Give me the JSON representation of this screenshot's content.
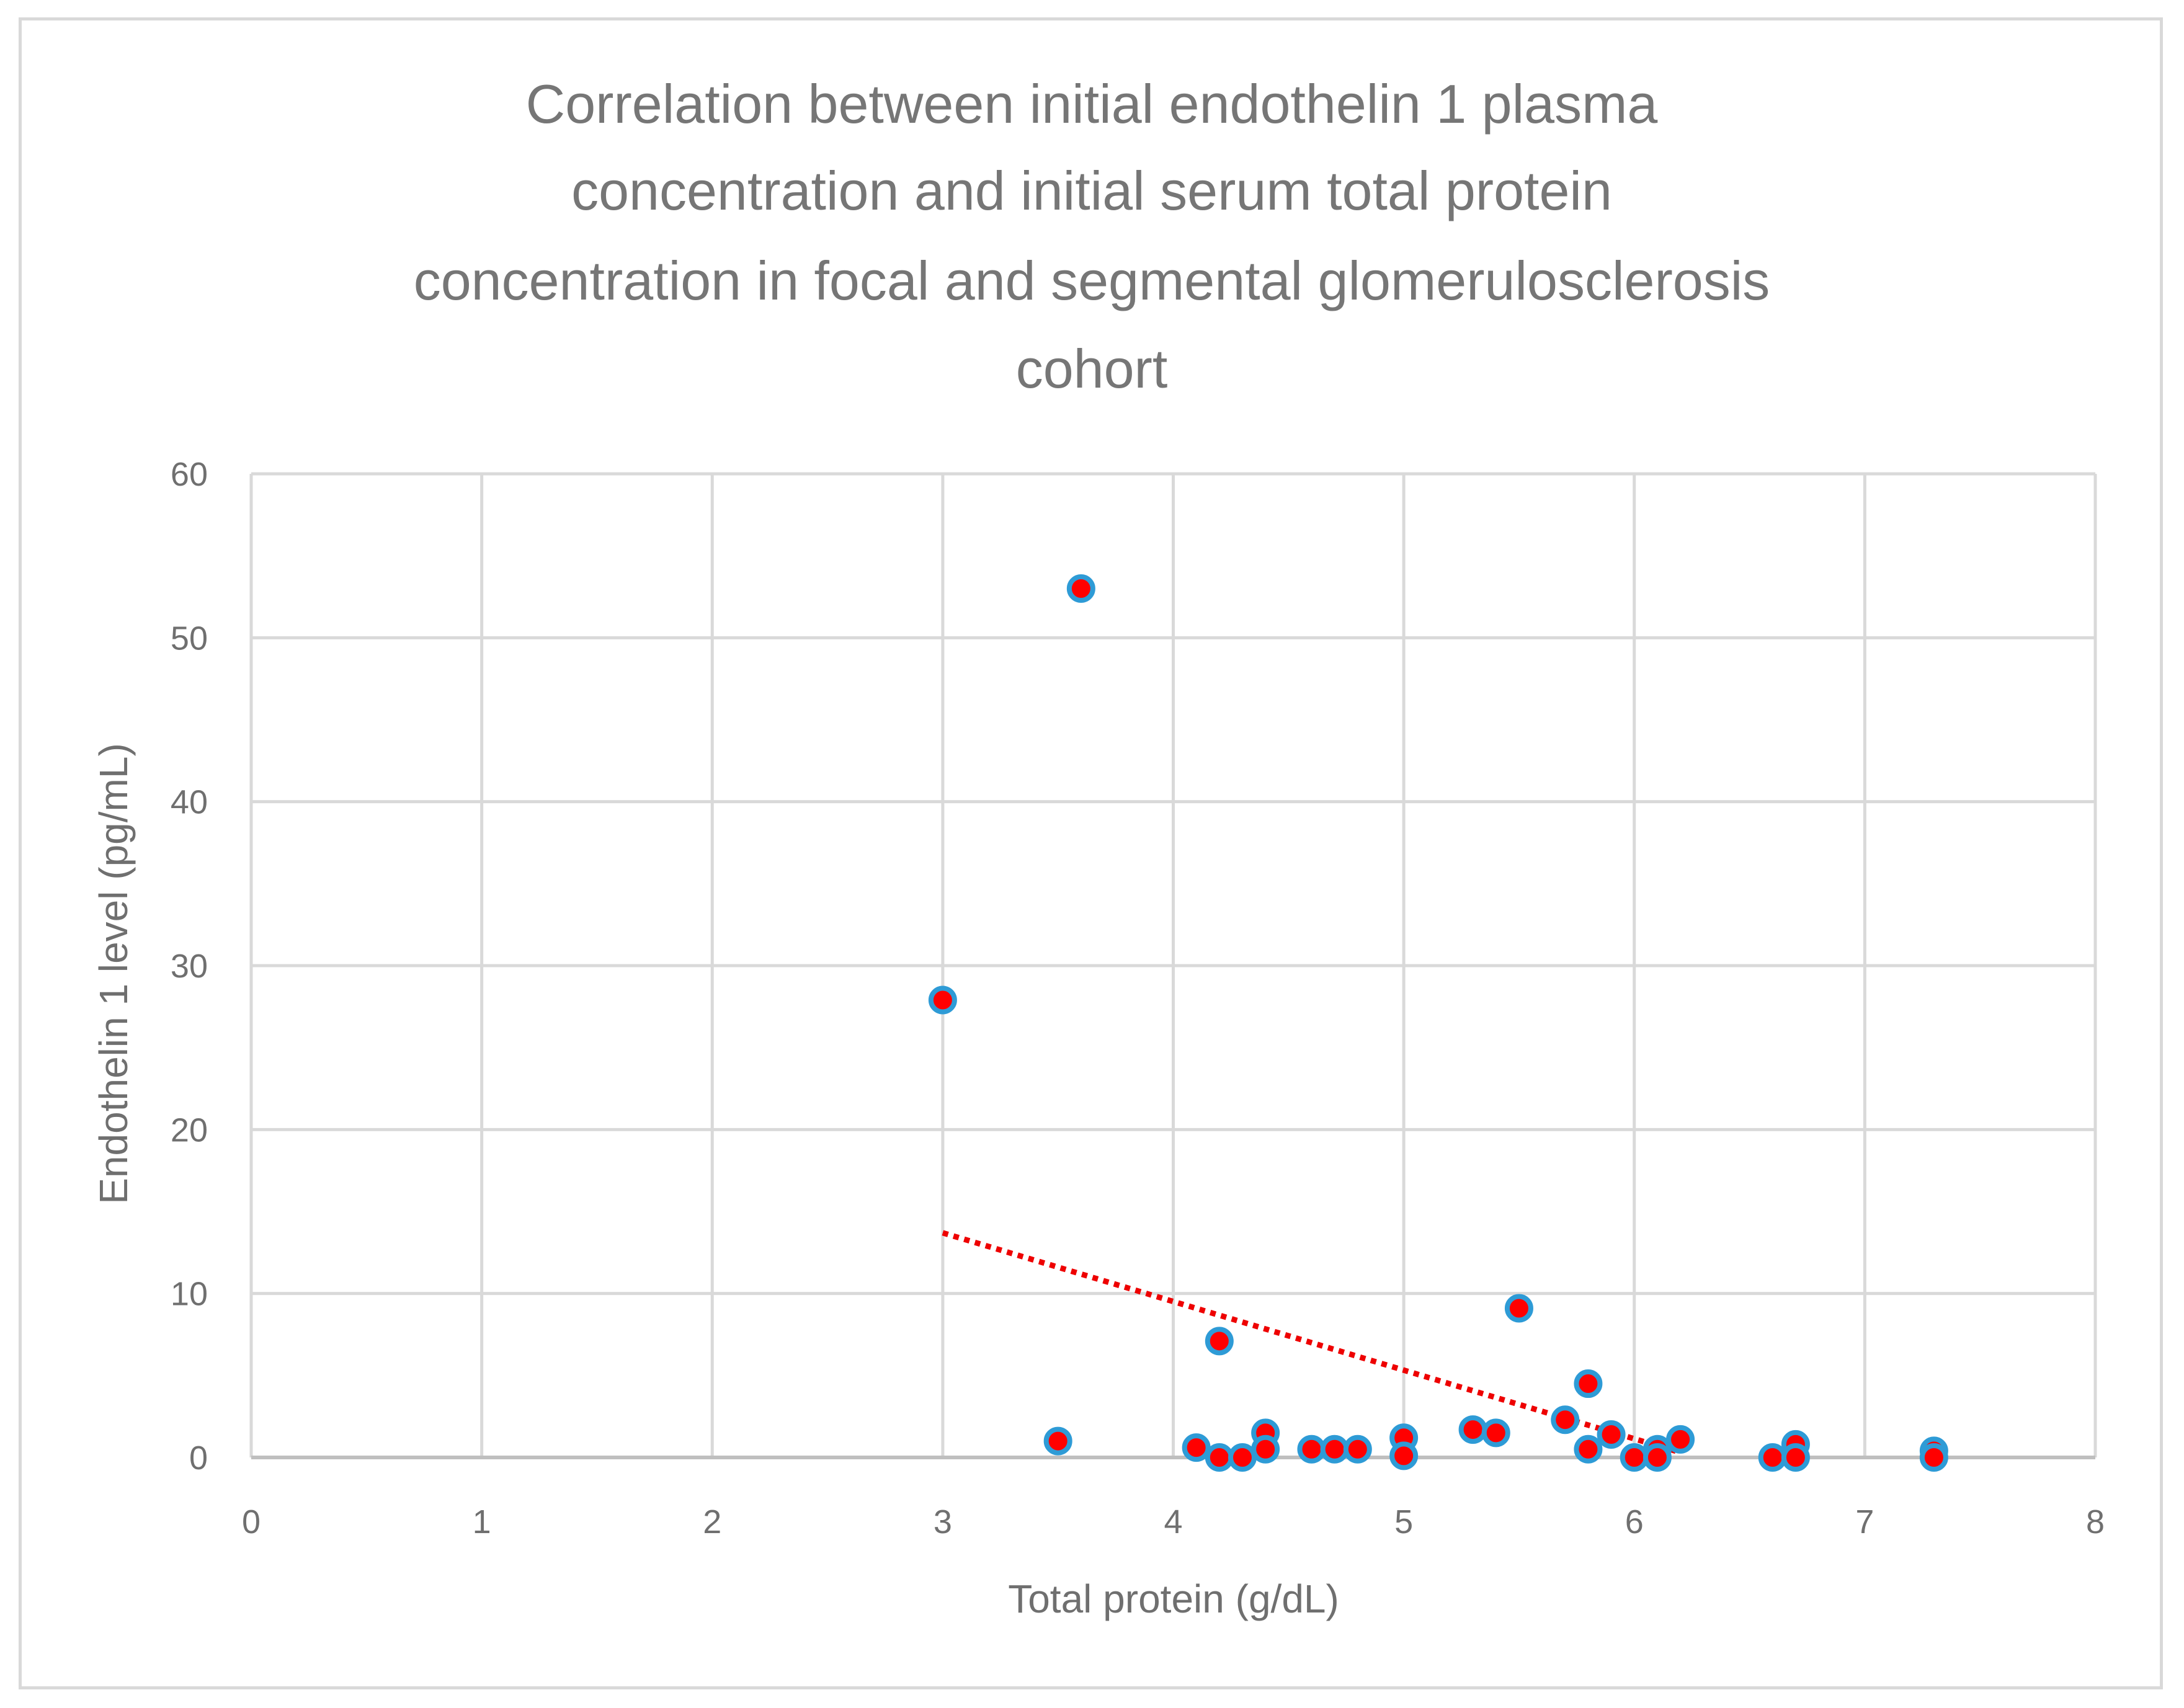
{
  "chart_data": {
    "type": "scatter",
    "title_lines": [
      "Correlation between initial endothelin 1 plasma",
      "concentration and initial serum total protein",
      "concentration in focal and segmental glomerulosclerosis",
      "cohort"
    ],
    "xlabel": "Total protein (g/dL)",
    "ylabel": "Endothelin 1 level (pg/mL)",
    "xlim": [
      0,
      8
    ],
    "ylim": [
      0,
      60
    ],
    "x_ticks": [
      0,
      1,
      2,
      3,
      4,
      5,
      6,
      7,
      8
    ],
    "y_ticks": [
      0,
      10,
      20,
      30,
      40,
      50,
      60
    ],
    "grid": true,
    "legend": "none",
    "marker": {
      "fill": "#ff0000",
      "stroke": "#2e9bd6"
    },
    "trendline": {
      "style": "dotted",
      "color": "#ee0000",
      "from": [
        3.0,
        13.7
      ],
      "to": [
        6.2,
        0.3
      ]
    },
    "series": [
      {
        "points": [
          [
            3.6,
            53.0
          ],
          [
            3.0,
            27.9
          ],
          [
            3.5,
            1.0
          ],
          [
            4.1,
            0.6
          ],
          [
            4.2,
            7.1
          ],
          [
            4.2,
            0.0
          ],
          [
            4.3,
            0.0
          ],
          [
            4.4,
            1.5
          ],
          [
            4.4,
            0.5
          ],
          [
            4.6,
            0.5
          ],
          [
            4.7,
            0.5
          ],
          [
            4.8,
            0.5
          ],
          [
            5.0,
            1.2
          ],
          [
            5.0,
            0.1
          ],
          [
            5.3,
            1.7
          ],
          [
            5.4,
            1.5
          ],
          [
            5.5,
            9.1
          ],
          [
            5.7,
            2.3
          ],
          [
            5.8,
            4.5
          ],
          [
            5.8,
            0.5
          ],
          [
            5.9,
            1.4
          ],
          [
            6.0,
            0.0
          ],
          [
            6.1,
            0.5
          ],
          [
            6.1,
            0.0
          ],
          [
            6.2,
            1.1
          ],
          [
            6.6,
            0.0
          ],
          [
            6.7,
            0.8
          ],
          [
            6.7,
            0.0
          ],
          [
            7.3,
            0.4
          ],
          [
            7.3,
            0.0
          ]
        ]
      }
    ]
  }
}
